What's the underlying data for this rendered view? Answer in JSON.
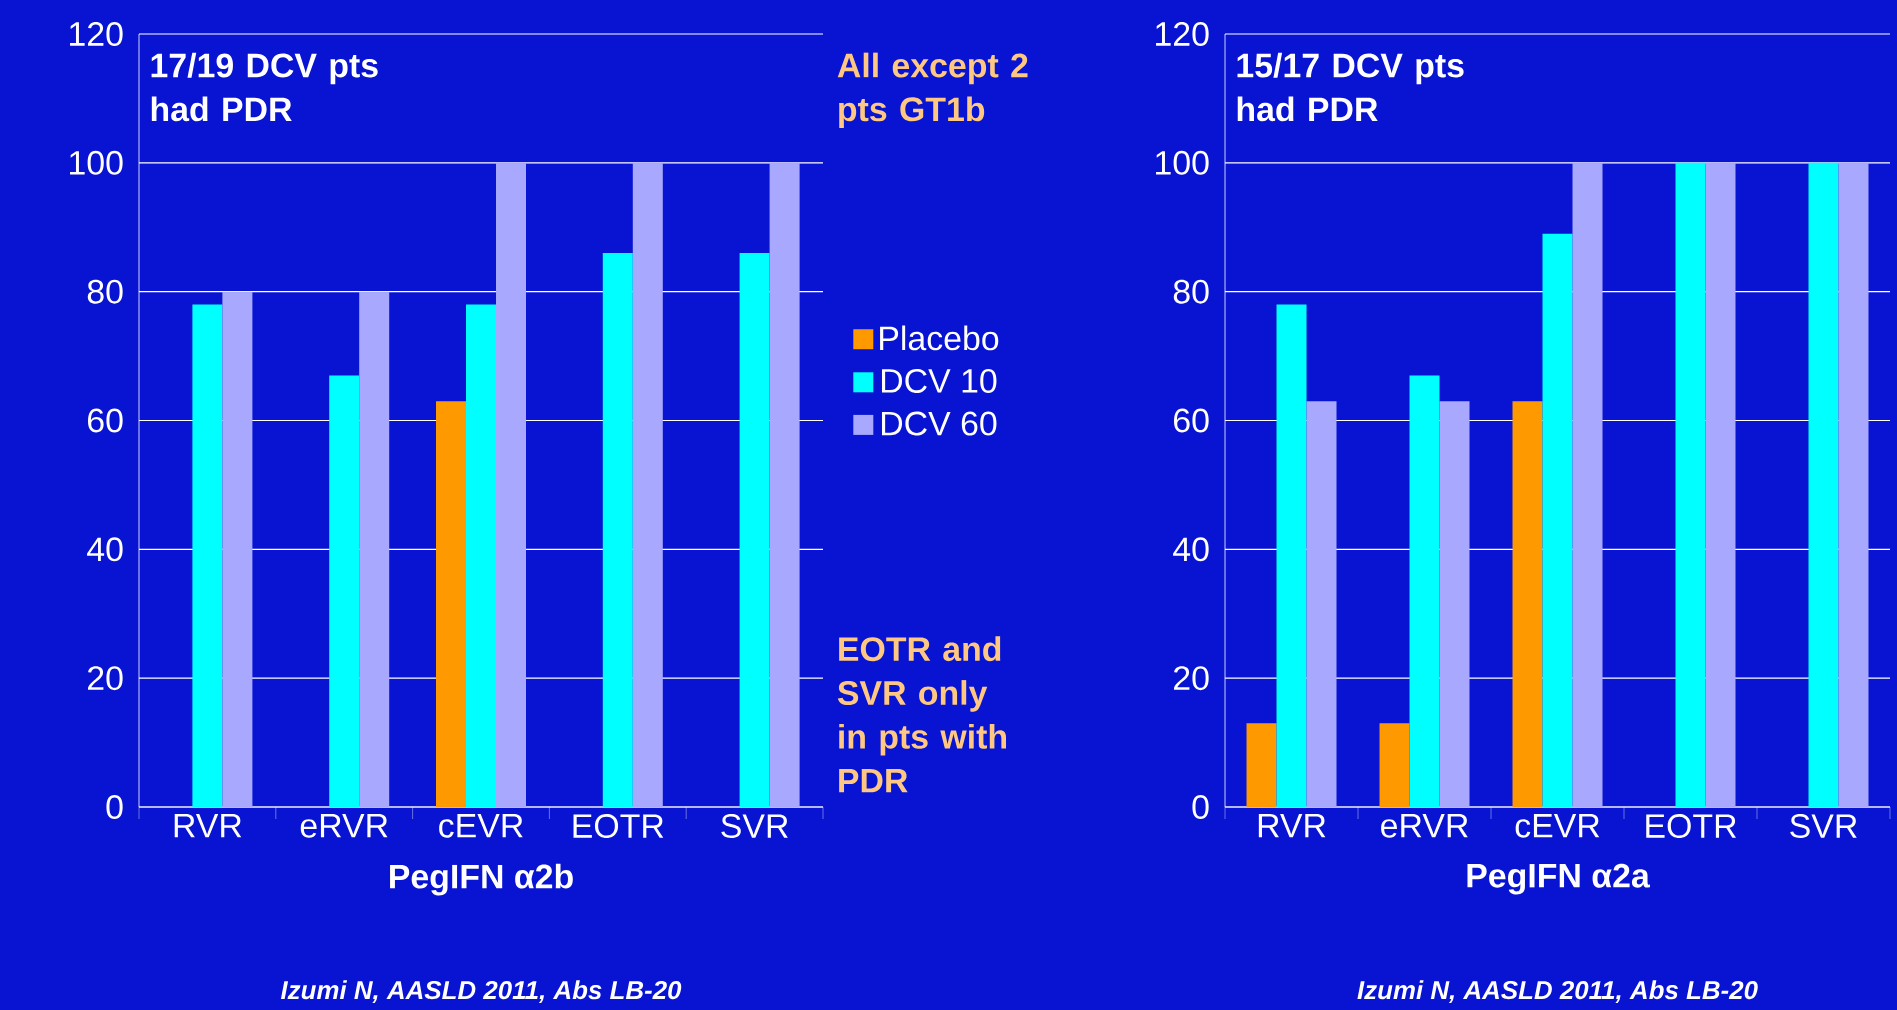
{
  "chart_data": [
    {
      "type": "bar",
      "categories": [
        "RVR",
        "eRVR",
        "cEVR",
        "EOTR",
        "SVR"
      ],
      "series": [
        {
          "name": "Placebo",
          "color": "#ff9900",
          "values": [
            null,
            null,
            63,
            null,
            null
          ]
        },
        {
          "name": "DCV 10",
          "color": "#00ffff",
          "values": [
            78,
            67,
            78,
            86,
            86
          ]
        },
        {
          "name": "DCV 60",
          "color": "#a8a8ff",
          "values": [
            80,
            80,
            100,
            100,
            100
          ]
        }
      ],
      "ylim": [
        0,
        120
      ],
      "yticks": [
        0,
        20,
        40,
        60,
        80,
        100,
        120
      ],
      "grid": "y",
      "legend": "right",
      "xlabel": "PegIFN α2b",
      "annotations": [
        "17/19 DCV pts had PDR",
        "All except 2 pts GT1b",
        "EOTR and SVR only in pts with PDR",
        "Izumi N, AASLD 2011, Abs LB-20"
      ]
    },
    {
      "type": "bar",
      "categories": [
        "RVR",
        "eRVR",
        "cEVR",
        "EOTR",
        "SVR"
      ],
      "series": [
        {
          "color": "#ff9900",
          "values": [
            13,
            13,
            63,
            null,
            null
          ]
        },
        {
          "color": "#00ffff",
          "values": [
            78,
            67,
            89,
            100,
            100
          ]
        },
        {
          "color": "#a8a8ff",
          "values": [
            63,
            63,
            100,
            100,
            100
          ]
        }
      ],
      "ylim": [
        0,
        120
      ],
      "yticks": [
        0,
        20,
        40,
        60,
        80,
        100,
        120
      ],
      "grid": "y",
      "xlabel": "PegIFN α2a",
      "annotations": [
        "15/17 DCV pts had PDR",
        "Izumi N, AASLD 2011, Abs LB-20"
      ]
    }
  ]
}
